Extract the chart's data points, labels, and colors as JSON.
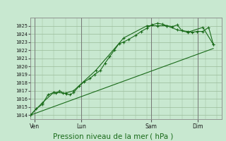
{
  "background_color": "#c8e8d0",
  "grid_color": "#99bb99",
  "line_color": "#1a6b1a",
  "title": "Pression niveau de la mer ( hPa )",
  "ylabel_values": [
    1014,
    1015,
    1016,
    1017,
    1018,
    1019,
    1020,
    1021,
    1022,
    1023,
    1024,
    1025
  ],
  "ylim": [
    1013.5,
    1026.0
  ],
  "xlim": [
    0,
    8.2
  ],
  "day_labels": [
    "Ven",
    "Lun",
    "Sam",
    "Dim"
  ],
  "day_positions": [
    0.18,
    2.18,
    5.18,
    7.18
  ],
  "day_vlines": [
    0.18,
    2.18,
    5.18,
    7.18
  ],
  "series1": [
    [
      0.0,
      1014.0
    ],
    [
      0.25,
      1014.8
    ],
    [
      0.5,
      1015.3
    ],
    [
      0.75,
      1016.5
    ],
    [
      1.0,
      1016.8
    ],
    [
      1.1,
      1016.7
    ],
    [
      1.25,
      1017.0
    ],
    [
      1.4,
      1016.7
    ],
    [
      1.55,
      1016.6
    ],
    [
      1.7,
      1016.5
    ],
    [
      1.85,
      1016.8
    ],
    [
      2.1,
      1017.6
    ],
    [
      2.3,
      1018.1
    ],
    [
      2.55,
      1018.5
    ],
    [
      2.75,
      1019.0
    ],
    [
      3.0,
      1019.5
    ],
    [
      3.2,
      1020.4
    ],
    [
      3.4,
      1021.2
    ],
    [
      3.6,
      1022.0
    ],
    [
      3.8,
      1022.8
    ],
    [
      4.0,
      1023.0
    ],
    [
      4.2,
      1023.3
    ],
    [
      4.5,
      1023.8
    ],
    [
      4.75,
      1024.3
    ],
    [
      5.0,
      1024.7
    ],
    [
      5.2,
      1025.1
    ],
    [
      5.45,
      1025.3
    ],
    [
      5.65,
      1025.2
    ],
    [
      5.85,
      1025.0
    ],
    [
      6.1,
      1024.9
    ],
    [
      6.3,
      1025.1
    ],
    [
      6.5,
      1024.4
    ],
    [
      6.75,
      1024.3
    ],
    [
      6.95,
      1024.2
    ],
    [
      7.15,
      1024.3
    ],
    [
      7.4,
      1024.3
    ],
    [
      7.65,
      1024.8
    ],
    [
      7.85,
      1022.7
    ]
  ],
  "series2": [
    [
      0.0,
      1014.0
    ],
    [
      0.5,
      1015.5
    ],
    [
      1.0,
      1016.8
    ],
    [
      1.5,
      1016.7
    ],
    [
      1.85,
      1017.0
    ],
    [
      2.8,
      1019.5
    ],
    [
      4.0,
      1023.5
    ],
    [
      5.0,
      1025.0
    ],
    [
      5.45,
      1025.0
    ],
    [
      5.85,
      1025.0
    ],
    [
      6.3,
      1024.5
    ],
    [
      6.75,
      1024.2
    ],
    [
      7.4,
      1024.8
    ],
    [
      7.85,
      1022.7
    ]
  ],
  "series3": [
    [
      0.0,
      1014.0
    ],
    [
      7.85,
      1022.2
    ]
  ]
}
